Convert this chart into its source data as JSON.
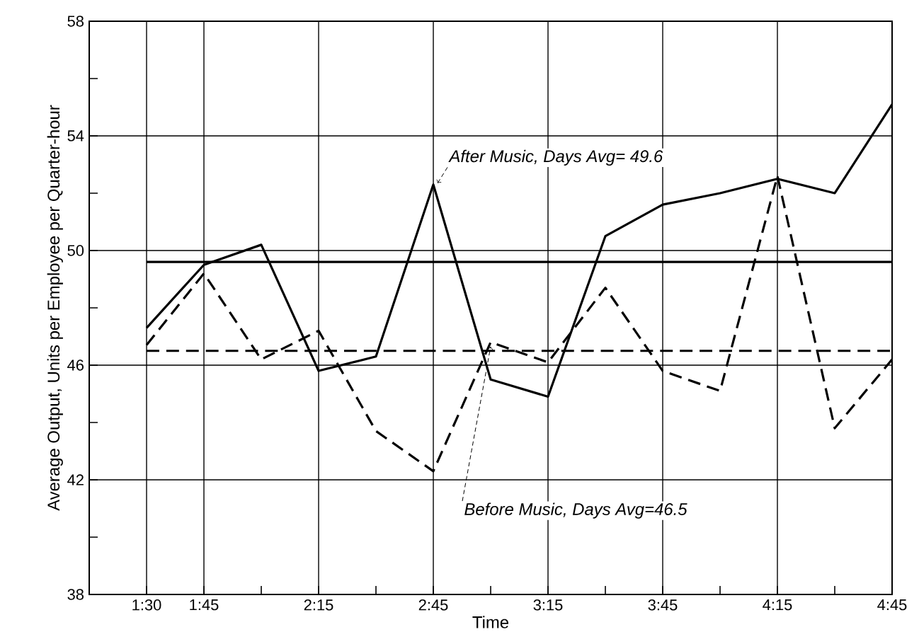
{
  "chart_data": {
    "type": "line",
    "xlabel": "Time",
    "ylabel": "Average Output, Units per Employee per Quarter-hour",
    "x": [
      1.5,
      1.75,
      2.0,
      2.25,
      2.5,
      2.75,
      3.0,
      3.25,
      3.5,
      3.75,
      4.0,
      4.25,
      4.5,
      4.75
    ],
    "series": [
      {
        "name": "After Music, Days Avg= 49.6",
        "color": "#000000",
        "line_style": "solid",
        "values": [
          47.3,
          49.5,
          50.2,
          45.8,
          46.3,
          52.3,
          45.5,
          44.9,
          50.5,
          51.6,
          52.0,
          52.5,
          52.0,
          55.1
        ]
      },
      {
        "name": "Before Music, Days Avg=46.5",
        "color": "#000000",
        "line_style": "dashed",
        "values": [
          46.7,
          49.2,
          46.2,
          47.2,
          43.7,
          42.3,
          46.8,
          46.1,
          48.7,
          45.8,
          45.1,
          52.6,
          43.8,
          46.2
        ]
      }
    ],
    "ref_lines": [
      {
        "axis": "y",
        "value": 49.6,
        "color": "#000000",
        "line_style": "solid"
      },
      {
        "axis": "y",
        "value": 46.5,
        "color": "#000000",
        "line_style": "dashed"
      }
    ],
    "xlim": [
      1.25,
      4.75
    ],
    "ylim": [
      38,
      58
    ],
    "xticks": [
      {
        "value": 1.5,
        "label": "1:30"
      },
      {
        "value": 1.75,
        "label": "1:45"
      },
      {
        "value": 2.0,
        "label": null
      },
      {
        "value": 2.25,
        "label": "2:15"
      },
      {
        "value": 2.5,
        "label": null
      },
      {
        "value": 2.75,
        "label": "2:45"
      },
      {
        "value": 3.0,
        "label": null
      },
      {
        "value": 3.25,
        "label": "3:15"
      },
      {
        "value": 3.5,
        "label": null
      },
      {
        "value": 3.75,
        "label": "3:45"
      },
      {
        "value": 4.0,
        "label": null
      },
      {
        "value": 4.25,
        "label": "4:15"
      },
      {
        "value": 4.5,
        "label": null
      },
      {
        "value": 4.75,
        "label": "4:45"
      }
    ],
    "yticks": [
      38,
      {
        "value": 40,
        "label": null
      },
      42,
      {
        "value": 44,
        "label": null
      },
      46,
      {
        "value": 48,
        "label": null
      },
      50,
      {
        "value": 52,
        "label": null
      },
      54,
      {
        "value": 56,
        "label": null
      },
      58
    ],
    "grid": true,
    "legend": false
  }
}
